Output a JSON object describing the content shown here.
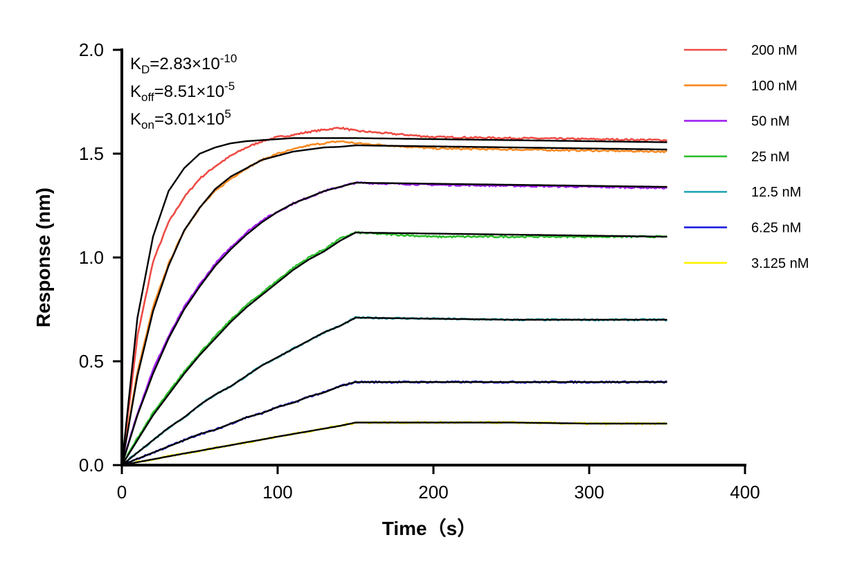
{
  "chart_data": {
    "type": "line",
    "xlabel": "Time（s）",
    "ylabel": "Response (nm)",
    "xlim": [
      0,
      400
    ],
    "ylim": [
      0,
      2.0
    ],
    "xticks": [
      "0",
      "100",
      "200",
      "300",
      "400"
    ],
    "yticks": [
      "0.0",
      "0.5",
      "1.0",
      "1.5",
      "2.0"
    ],
    "grid": false,
    "legend_position": "top-right",
    "annotations": {
      "kd": {
        "base": "K",
        "sub": "D",
        "eq": "=2.83×10",
        "exp": "-10"
      },
      "koff": {
        "base": "K",
        "sub": "off",
        "eq": "=8.51×10",
        "exp": "-5"
      },
      "kon": {
        "base": "K",
        "sub": "on",
        "eq": "=3.01×10",
        "exp": "5"
      }
    },
    "x": [
      0,
      10,
      20,
      30,
      40,
      50,
      60,
      70,
      80,
      90,
      100,
      110,
      120,
      130,
      140,
      150,
      200,
      250,
      300,
      350
    ],
    "fit_color": "#000000",
    "series": [
      {
        "name": "200 nM",
        "color": "#EE4B44",
        "values": [
          0,
          0.62,
          0.98,
          1.17,
          1.29,
          1.38,
          1.44,
          1.49,
          1.53,
          1.56,
          1.58,
          1.59,
          1.605,
          1.615,
          1.625,
          1.61,
          1.58,
          1.575,
          1.57,
          1.565
        ],
        "fit": [
          0,
          0.71,
          1.1,
          1.32,
          1.43,
          1.5,
          1.53,
          1.55,
          1.56,
          1.565,
          1.57,
          1.575,
          1.575,
          1.575,
          1.575,
          1.575,
          1.57,
          1.565,
          1.56,
          1.555
        ]
      },
      {
        "name": "100 nM",
        "color": "#F98A22",
        "values": [
          0,
          0.45,
          0.76,
          0.97,
          1.13,
          1.24,
          1.32,
          1.38,
          1.43,
          1.47,
          1.5,
          1.52,
          1.54,
          1.55,
          1.56,
          1.55,
          1.525,
          1.52,
          1.515,
          1.51
        ],
        "fit": [
          0,
          0.43,
          0.74,
          0.96,
          1.13,
          1.24,
          1.33,
          1.39,
          1.43,
          1.47,
          1.49,
          1.51,
          1.52,
          1.53,
          1.533,
          1.54,
          1.535,
          1.53,
          1.525,
          1.52
        ]
      },
      {
        "name": "50 nM",
        "color": "#A020F0",
        "values": [
          0,
          0.25,
          0.46,
          0.62,
          0.76,
          0.87,
          0.97,
          1.05,
          1.12,
          1.18,
          1.22,
          1.26,
          1.29,
          1.32,
          1.34,
          1.36,
          1.35,
          1.345,
          1.34,
          1.335
        ],
        "fit": [
          0,
          0.24,
          0.44,
          0.61,
          0.75,
          0.86,
          0.96,
          1.04,
          1.11,
          1.17,
          1.22,
          1.26,
          1.29,
          1.32,
          1.34,
          1.36,
          1.355,
          1.35,
          1.345,
          1.34
        ]
      },
      {
        "name": "25 nM",
        "color": "#2DBE2D",
        "values": [
          0,
          0.13,
          0.25,
          0.35,
          0.45,
          0.54,
          0.62,
          0.7,
          0.77,
          0.83,
          0.89,
          0.95,
          1.0,
          1.04,
          1.09,
          1.12,
          1.1,
          1.1,
          1.1,
          1.1
        ],
        "fit": [
          0,
          0.12,
          0.24,
          0.34,
          0.44,
          0.53,
          0.61,
          0.69,
          0.76,
          0.82,
          0.88,
          0.94,
          0.99,
          1.03,
          1.08,
          1.12,
          1.115,
          1.11,
          1.105,
          1.1
        ]
      },
      {
        "name": "12.5 nM",
        "color": "#1FA5B5",
        "values": [
          0,
          0.06,
          0.12,
          0.18,
          0.23,
          0.29,
          0.34,
          0.38,
          0.43,
          0.48,
          0.52,
          0.56,
          0.6,
          0.64,
          0.67,
          0.71,
          0.705,
          0.7,
          0.7,
          0.7
        ],
        "fit": [
          0,
          0.06,
          0.12,
          0.18,
          0.23,
          0.29,
          0.34,
          0.38,
          0.43,
          0.48,
          0.52,
          0.56,
          0.6,
          0.64,
          0.67,
          0.71,
          0.705,
          0.7,
          0.7,
          0.7
        ]
      },
      {
        "name": "6.25 nM",
        "color": "#1515E0",
        "values": [
          0,
          0.03,
          0.06,
          0.09,
          0.12,
          0.15,
          0.17,
          0.2,
          0.23,
          0.25,
          0.28,
          0.3,
          0.33,
          0.35,
          0.38,
          0.4,
          0.4,
          0.4,
          0.4,
          0.4
        ],
        "fit": [
          0,
          0.03,
          0.06,
          0.09,
          0.12,
          0.15,
          0.17,
          0.2,
          0.23,
          0.25,
          0.28,
          0.3,
          0.33,
          0.35,
          0.38,
          0.4,
          0.4,
          0.4,
          0.4,
          0.4
        ]
      },
      {
        "name": "3.125 nM",
        "color": "#FFF200",
        "values": [
          0,
          0.014,
          0.028,
          0.042,
          0.056,
          0.069,
          0.083,
          0.096,
          0.11,
          0.123,
          0.137,
          0.15,
          0.163,
          0.176,
          0.189,
          0.205,
          0.205,
          0.205,
          0.2,
          0.2
        ],
        "fit": [
          0,
          0.014,
          0.028,
          0.042,
          0.056,
          0.069,
          0.083,
          0.096,
          0.11,
          0.123,
          0.137,
          0.15,
          0.163,
          0.176,
          0.189,
          0.205,
          0.205,
          0.205,
          0.2,
          0.2
        ]
      }
    ]
  }
}
